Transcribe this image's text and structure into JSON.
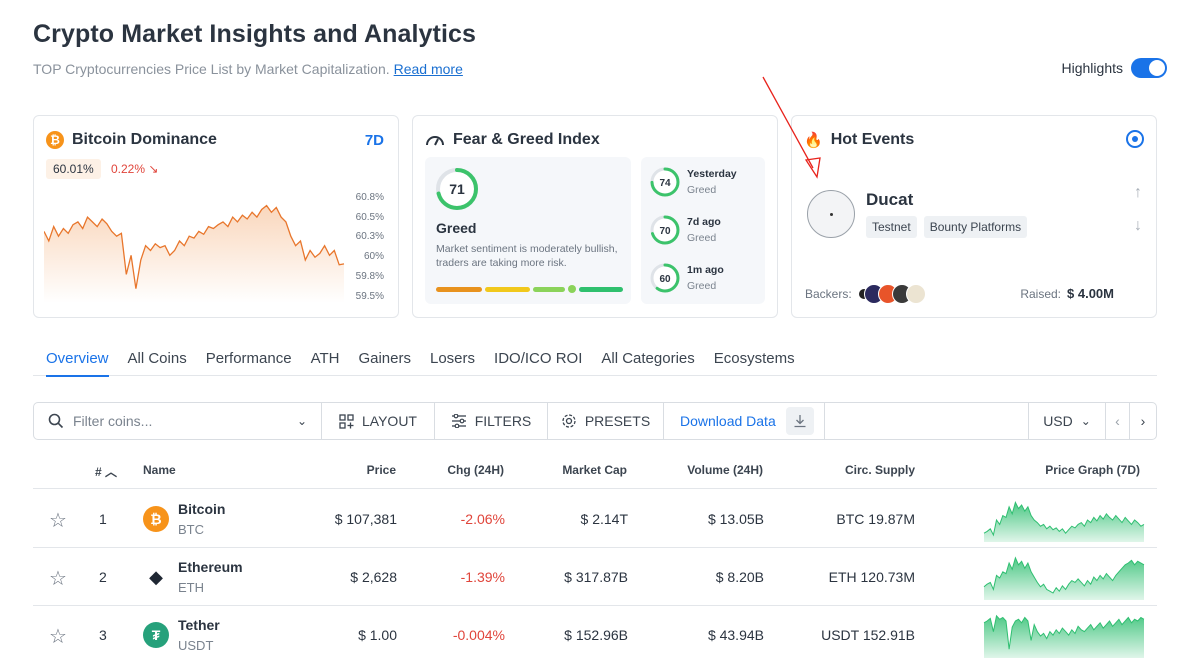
{
  "header": {
    "title": "Crypto Market Insights and Analytics",
    "subtitle": "TOP Cryptocurrencies Price List by Market Capitalization.",
    "read_more": "Read more",
    "highlights_label": "Highlights",
    "highlights_on": true
  },
  "btc_dominance": {
    "title": "Bitcoin Dominance",
    "icon": "bitcoin-icon",
    "range": "7D",
    "value": "60.01%",
    "change": "0.22%",
    "change_direction": "down",
    "axis_labels": [
      "60.8%",
      "60.5%",
      "60.3%",
      "60%",
      "59.8%",
      "59.5%"
    ],
    "series": [
      60.35,
      60.25,
      60.4,
      60.3,
      60.38,
      60.33,
      60.42,
      60.45,
      60.38,
      60.5,
      60.45,
      60.4,
      60.48,
      60.43,
      60.35,
      60.3,
      60.33,
      59.9,
      60.1,
      59.75,
      60.05,
      60.2,
      60.15,
      60.22,
      60.18,
      60.2,
      60.1,
      60.15,
      60.25,
      60.2,
      60.3,
      60.28,
      60.35,
      60.32,
      60.4,
      60.38,
      60.42,
      60.45,
      60.4,
      60.5,
      60.45,
      60.52,
      60.48,
      60.55,
      60.5,
      60.58,
      60.62,
      60.55,
      60.6,
      60.5,
      60.45,
      60.3,
      60.2,
      60.25,
      60.05,
      60.15,
      60.08,
      60.12,
      60.2,
      60.1,
      60.15,
      60.0,
      60.01
    ],
    "color": "#e8762c"
  },
  "fear_greed": {
    "title": "Fear & Greed Index",
    "icon": "gauge-icon",
    "value": "71",
    "level": 71,
    "label": "Greed",
    "description": "Market sentiment is moderately bullish, traders are taking more risk.",
    "history": [
      {
        "value": "74",
        "level": 74,
        "period": "Yesterday",
        "label": "Greed"
      },
      {
        "value": "70",
        "level": 70,
        "period": "7d ago",
        "label": "Greed"
      },
      {
        "value": "60",
        "level": 60,
        "period": "1m ago",
        "label": "Greed"
      }
    ],
    "colors": {
      "ring": "#3cc36b",
      "bar": [
        "#e8921e",
        "#f1c81c",
        "#8bd35a",
        "#2fc06e"
      ]
    }
  },
  "hot_events": {
    "title": "Hot Events",
    "icon": "fire-icon",
    "project": "Ducat",
    "tags": [
      "Testnet",
      "Bounty Platforms"
    ],
    "backers_label": "Backers:",
    "raised_label": "Raised:",
    "raised_value": "$ 4.00M"
  },
  "tabs": [
    "Overview",
    "All Coins",
    "Performance",
    "ATH",
    "Gainers",
    "Losers",
    "IDO/ICO ROI",
    "All Categories",
    "Ecosystems"
  ],
  "active_tab": "Overview",
  "toolbar": {
    "search_placeholder": "Filter coins...",
    "layout": "LAYOUT",
    "filters": "FILTERS",
    "presets": "PRESETS",
    "download": "Download Data",
    "currency": "USD"
  },
  "table": {
    "headers": {
      "rank": "#",
      "name": "Name",
      "price": "Price",
      "change": "Chg (24H)",
      "market_cap": "Market Cap",
      "volume": "Volume (24H)",
      "supply": "Circ. Supply",
      "graph": "Price Graph (7D)"
    },
    "rows": [
      {
        "rank": "1",
        "name": "Bitcoin",
        "symbol": "BTC",
        "icon": "bitcoin-icon",
        "color": "#f7931a",
        "price": "$ 107,381",
        "change": "-2.06%",
        "market_cap": "$ 2.14T",
        "volume": "$ 13.05B",
        "supply": "BTC 19.87M",
        "spark": [
          40,
          42,
          45,
          38,
          55,
          50,
          60,
          58,
          70,
          62,
          75,
          68,
          72,
          65,
          70,
          60,
          55,
          52,
          48,
          50,
          45,
          48,
          44,
          46,
          42,
          45,
          40,
          44,
          48,
          46,
          50,
          52,
          48,
          55,
          52,
          58,
          54,
          60,
          56,
          62,
          58,
          55,
          60,
          56,
          52,
          58,
          54,
          50,
          55,
          52,
          48,
          50
        ]
      },
      {
        "rank": "2",
        "name": "Ethereum",
        "symbol": "ETH",
        "icon": "ethereum-icon",
        "color": "#1f2733",
        "price": "$ 2,628",
        "change": "-1.39%",
        "market_cap": "$ 317.87B",
        "volume": "$ 8.20B",
        "supply": "ETH 120.73M",
        "spark": [
          45,
          48,
          50,
          42,
          58,
          55,
          62,
          60,
          72,
          65,
          78,
          70,
          74,
          66,
          72,
          62,
          56,
          50,
          45,
          48,
          42,
          40,
          38,
          44,
          40,
          46,
          42,
          48,
          52,
          50,
          54,
          50,
          46,
          52,
          48,
          56,
          52,
          58,
          54,
          60,
          56,
          52,
          58,
          62,
          66,
          70,
          72,
          75,
          70,
          74,
          72,
          70
        ]
      },
      {
        "rank": "3",
        "name": "Tether",
        "symbol": "USDT",
        "icon": "tether-icon",
        "color": "#26a17b",
        "price": "$ 1.00",
        "change": "-0.004%",
        "market_cap": "$ 152.96B",
        "volume": "$ 43.94B",
        "supply": "USDT 152.91B",
        "spark": [
          70,
          72,
          75,
          60,
          78,
          74,
          76,
          72,
          40,
          65,
          72,
          74,
          70,
          76,
          72,
          50,
          68,
          60,
          55,
          58,
          52,
          60,
          56,
          62,
          58,
          64,
          60,
          56,
          62,
          58,
          66,
          62,
          60,
          64,
          68,
          62,
          66,
          70,
          64,
          68,
          72,
          66,
          70,
          74,
          68,
          72,
          76,
          70,
          74,
          72,
          76,
          74
        ]
      }
    ],
    "spark_color": "#2fbf71"
  }
}
